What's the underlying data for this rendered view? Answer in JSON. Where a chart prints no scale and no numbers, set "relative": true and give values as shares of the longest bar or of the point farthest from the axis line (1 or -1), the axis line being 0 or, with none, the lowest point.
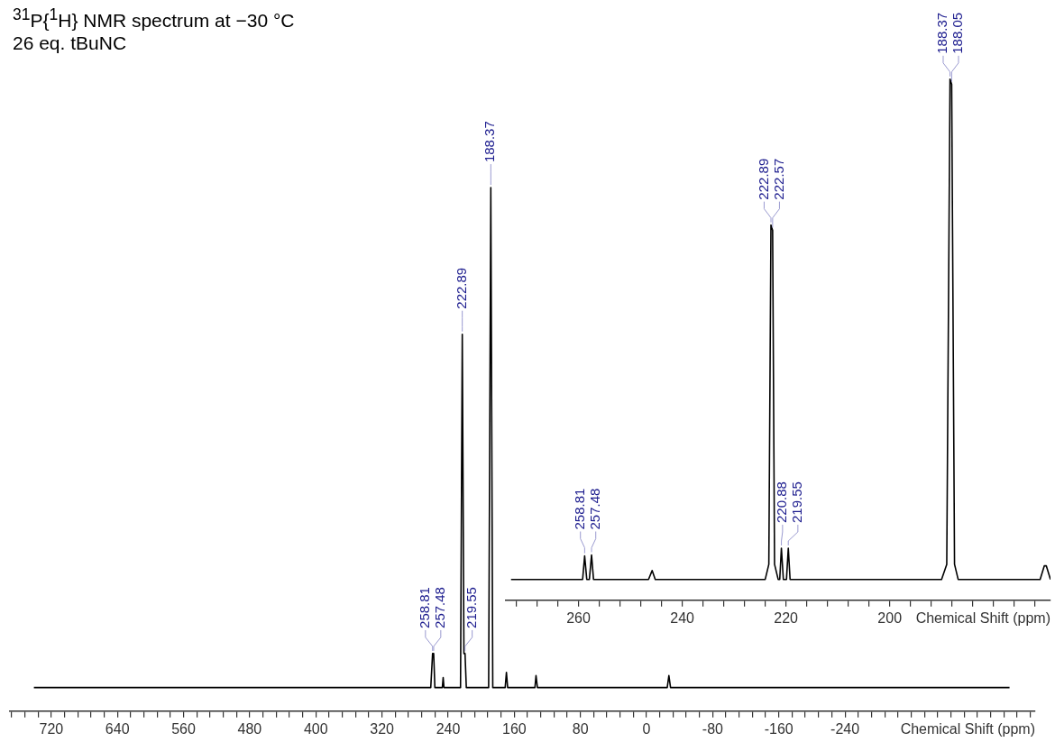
{
  "chart_data": [
    {
      "type": "line",
      "title": "$^{31}$P{$^{1}$H} NMR spectrum at −30 °C",
      "subtitle": "26 eq. tBuNC",
      "xlabel": "Chemical Shift (ppm)",
      "relative": true,
      "xlim": [
        770,
        -470
      ],
      "xticks": [
        {
          "value": 768,
          "label": null
        },
        {
          "value": 752,
          "label": null
        },
        {
          "value": 736,
          "label": null
        },
        720,
        {
          "value": 704,
          "label": null
        },
        {
          "value": 688,
          "label": null
        },
        {
          "value": 672,
          "label": null
        },
        {
          "value": 656,
          "label": null
        },
        640,
        {
          "value": 624,
          "label": null
        },
        {
          "value": 608,
          "label": null
        },
        {
          "value": 592,
          "label": null
        },
        {
          "value": 576,
          "label": null
        },
        560,
        {
          "value": 544,
          "label": null
        },
        {
          "value": 528,
          "label": null
        },
        {
          "value": 512,
          "label": null
        },
        {
          "value": 496,
          "label": null
        },
        480,
        {
          "value": 464,
          "label": null
        },
        {
          "value": 448,
          "label": null
        },
        {
          "value": 432,
          "label": null
        },
        {
          "value": 416,
          "label": null
        },
        400,
        {
          "value": 384,
          "label": null
        },
        {
          "value": 368,
          "label": null
        },
        {
          "value": 352,
          "label": null
        },
        {
          "value": 336,
          "label": null
        },
        320,
        {
          "value": 304,
          "label": null
        },
        {
          "value": 288,
          "label": null
        },
        {
          "value": 272,
          "label": null
        },
        {
          "value": 256,
          "label": null
        },
        240,
        {
          "value": 224,
          "label": null
        },
        {
          "value": 208,
          "label": null
        },
        {
          "value": 192,
          "label": null
        },
        {
          "value": 176,
          "label": null
        },
        160,
        {
          "value": 144,
          "label": null
        },
        {
          "value": 128,
          "label": null
        },
        {
          "value": 112,
          "label": null
        },
        {
          "value": 96,
          "label": null
        },
        80,
        {
          "value": 64,
          "label": null
        },
        {
          "value": 48,
          "label": null
        },
        {
          "value": 32,
          "label": null
        },
        {
          "value": 16,
          "label": null
        },
        0,
        {
          "value": -16,
          "label": null
        },
        {
          "value": -32,
          "label": null
        },
        {
          "value": -48,
          "label": null
        },
        {
          "value": -64,
          "label": null
        },
        -80,
        {
          "value": -96,
          "label": null
        },
        {
          "value": -112,
          "label": null
        },
        {
          "value": -128,
          "label": null
        },
        {
          "value": -144,
          "label": null
        },
        -160,
        {
          "value": -176,
          "label": null
        },
        {
          "value": -192,
          "label": null
        },
        {
          "value": -208,
          "label": null
        },
        {
          "value": -224,
          "label": null
        },
        -240,
        {
          "value": -256,
          "label": null
        },
        {
          "value": -272,
          "label": null
        },
        {
          "value": -288,
          "label": null
        },
        {
          "value": -304,
          "label": null
        },
        {
          "value": -320,
          "label": null
        },
        {
          "value": -336,
          "label": null
        },
        {
          "value": -352,
          "label": null
        },
        {
          "value": -368,
          "label": null
        },
        {
          "value": -384,
          "label": null
        },
        {
          "value": -400,
          "label": null
        },
        {
          "value": -416,
          "label": null
        },
        {
          "value": -432,
          "label": null
        },
        {
          "value": -448,
          "label": null
        },
        {
          "value": -464,
          "label": null
        }
      ],
      "series": [
        {
          "color": "#000000",
          "x": [
            741,
            500,
            300,
            261,
            258.81,
            257.48,
            256,
            247,
            246,
            245,
            225,
            222.89,
            220.88,
            219.55,
            218,
            191,
            188.37,
            186,
            171,
            169.5,
            168,
            135,
            133.7,
            132,
            -25,
            -27,
            -29,
            -439
          ],
          "values": [
            0.045,
            0.045,
            0.045,
            0.045,
            0.11,
            0.11,
            0.045,
            0.045,
            0.064,
            0.045,
            0.045,
            0.72,
            0.11,
            0.11,
            0.045,
            0.045,
            1,
            0.045,
            0.045,
            0.074,
            0.045,
            0.045,
            0.068,
            0.045,
            0.045,
            0.068,
            0.045,
            0.045
          ]
        }
      ],
      "annotations": [
        {
          "text": "258.81",
          "x": 258.81,
          "y": 0.11
        },
        {
          "text": "257.48",
          "x": 257.48,
          "y": 0.11
        },
        {
          "text": "222.89",
          "x": 222.89,
          "y": 0.72
        },
        {
          "text": "219.55",
          "x": 219.55,
          "y": 0.11
        },
        {
          "text": "188.37",
          "x": 188.37,
          "y": 1
        }
      ]
    },
    {
      "type": "line",
      "xlabel": "Chemical Shift (ppm)",
      "relative": true,
      "xlim": [
        274,
        169
      ],
      "xticks": [
        {
          "value": 272,
          "label": null
        },
        {
          "value": 268,
          "label": null
        },
        {
          "value": 264,
          "label": null
        },
        260,
        {
          "value": 256,
          "label": null
        },
        {
          "value": 252,
          "label": null
        },
        {
          "value": 248,
          "label": null
        },
        {
          "value": 244,
          "label": null
        },
        240,
        {
          "value": 236,
          "label": null
        },
        {
          "value": 232,
          "label": null
        },
        {
          "value": 228,
          "label": null
        },
        {
          "value": 224,
          "label": null
        },
        220,
        {
          "value": 216,
          "label": null
        },
        {
          "value": 212,
          "label": null
        },
        {
          "value": 208,
          "label": null
        },
        {
          "value": 204,
          "label": null
        },
        200,
        {
          "value": 196,
          "label": null
        },
        {
          "value": 192,
          "label": null
        },
        {
          "value": 188,
          "label": null
        },
        {
          "value": 184,
          "label": null
        },
        {
          "value": 180,
          "label": null
        },
        {
          "value": 176,
          "label": null
        },
        {
          "value": 172,
          "label": null
        }
      ],
      "series": [
        {
          "color": "#000000",
          "x": [
            273,
            260,
            259.2,
            258.81,
            258.4,
            257.9,
            257.48,
            257.1,
            246.5,
            245.8,
            245.2,
            224,
            223.3,
            222.89,
            222.57,
            222.2,
            221.5,
            221.2,
            220.88,
            220.5,
            219.9,
            219.55,
            219.2,
            190,
            189,
            188.37,
            188.05,
            187.5,
            186.8,
            171,
            170.2,
            169.8,
            169
          ],
          "values": [
            0.04,
            0.04,
            0.04,
            0.085,
            0.04,
            0.04,
            0.087,
            0.04,
            0.04,
            0.057,
            0.04,
            0.04,
            0.069,
            0.72,
            0.71,
            0.069,
            0.04,
            0.04,
            0.1,
            0.04,
            0.04,
            0.1,
            0.04,
            0.04,
            0.069,
            1,
            0.99,
            0.069,
            0.04,
            0.04,
            0.066,
            0.066,
            0.04
          ]
        }
      ],
      "annotations": [
        {
          "text": "258.81",
          "x": 258.81,
          "y": 0.085
        },
        {
          "text": "257.48",
          "x": 257.48,
          "y": 0.087
        },
        {
          "text": "222.89",
          "x": 222.89,
          "y": 0.72
        },
        {
          "text": "222.57",
          "x": 222.57,
          "y": 0.71
        },
        {
          "text": "220.88",
          "x": 220.88,
          "y": 0.1
        },
        {
          "text": "219.55",
          "x": 219.55,
          "y": 0.1
        },
        {
          "text": "188.37",
          "x": 188.37,
          "y": 1
        },
        {
          "text": "188.05",
          "x": 188.05,
          "y": 0.99
        }
      ]
    }
  ]
}
